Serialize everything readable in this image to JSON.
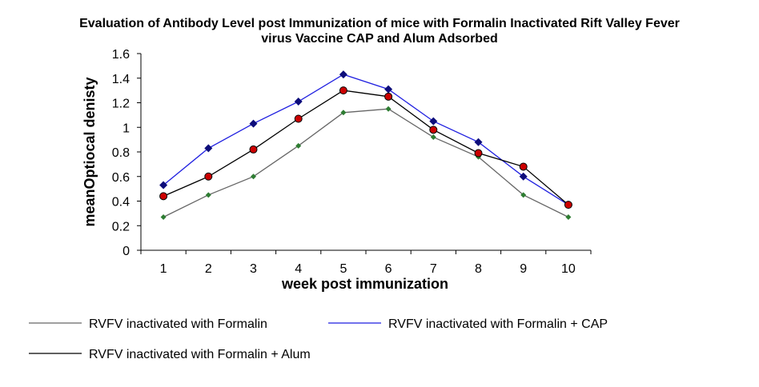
{
  "chart_data": {
    "type": "line",
    "title": "Evaluation of Antibody  Level post Immunization of mice with Formalin  Inactivated Rift Valley Fever",
    "subtitle": "virus Vaccine CAP and Alum  Adsorbed",
    "xlabel": "week post immunization",
    "ylabel": "meanOptiocal denisty",
    "categories": [
      "1",
      "2",
      "3",
      "4",
      "5",
      "6",
      "7",
      "8",
      "9",
      "10"
    ],
    "ylim": [
      0,
      1.6
    ],
    "yticks": [
      "0",
      "0.2",
      "0.4",
      "0.6",
      "0.8",
      "1",
      "1.2",
      "1.4",
      "1.6"
    ],
    "grid": false,
    "legend_position": "bottom",
    "series": [
      {
        "name": "RVFV inactivated with Formalin",
        "color": "#666666",
        "marker": "small-diamond",
        "marker_color": "#2e7d32",
        "values": [
          0.27,
          0.45,
          0.6,
          0.85,
          1.12,
          1.15,
          0.92,
          0.76,
          0.45,
          0.27
        ]
      },
      {
        "name": "RVFV inactivated with Formalin + CAP",
        "color": "#1f1fe0",
        "marker": "diamond",
        "marker_color": "#0d0d7a",
        "values": [
          0.53,
          0.83,
          1.03,
          1.21,
          1.43,
          1.31,
          1.05,
          0.88,
          0.6,
          0.37
        ]
      },
      {
        "name": "RVFV inactivated with Formalin + Alum",
        "color": "#000000",
        "marker": "circle",
        "marker_color": "#cc0000",
        "values": [
          0.44,
          0.6,
          0.82,
          1.07,
          1.3,
          1.25,
          0.98,
          0.79,
          0.68,
          0.37
        ]
      }
    ]
  }
}
